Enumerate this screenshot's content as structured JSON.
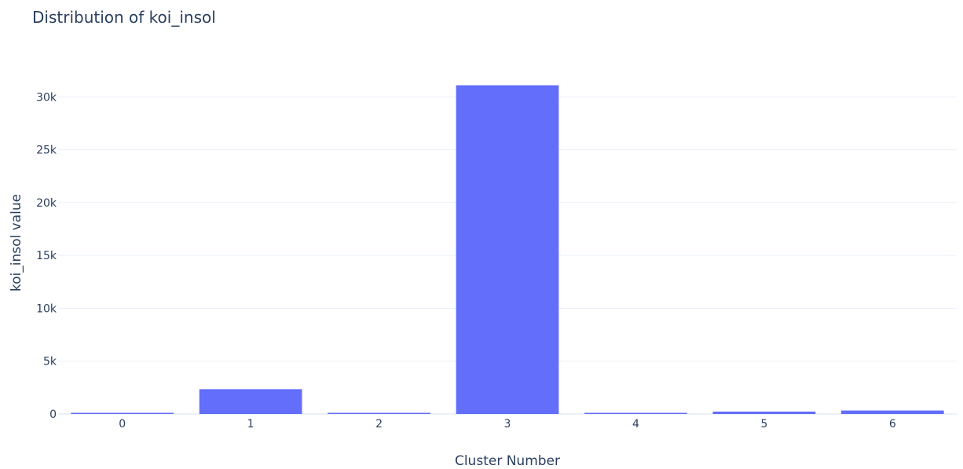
{
  "chart_data": {
    "type": "bar",
    "title": "Distribution of koi_insol",
    "xlabel": "Cluster Number",
    "ylabel": "koi_insol  value",
    "categories": [
      "0",
      "1",
      "2",
      "3",
      "4",
      "5",
      "6"
    ],
    "values": [
      80,
      2350,
      70,
      31100,
      60,
      230,
      330
    ],
    "ylim": [
      0,
      32700
    ],
    "yticks": [
      0,
      5000,
      10000,
      15000,
      20000,
      25000,
      30000
    ],
    "ytick_labels": [
      "0",
      "5k",
      "10k",
      "15k",
      "20k",
      "25k",
      "30k"
    ],
    "grid": true,
    "legend": "none",
    "colors": {
      "bar": "#636efa",
      "grid": "#ebf0f8",
      "text": "#2a3f5f"
    }
  }
}
